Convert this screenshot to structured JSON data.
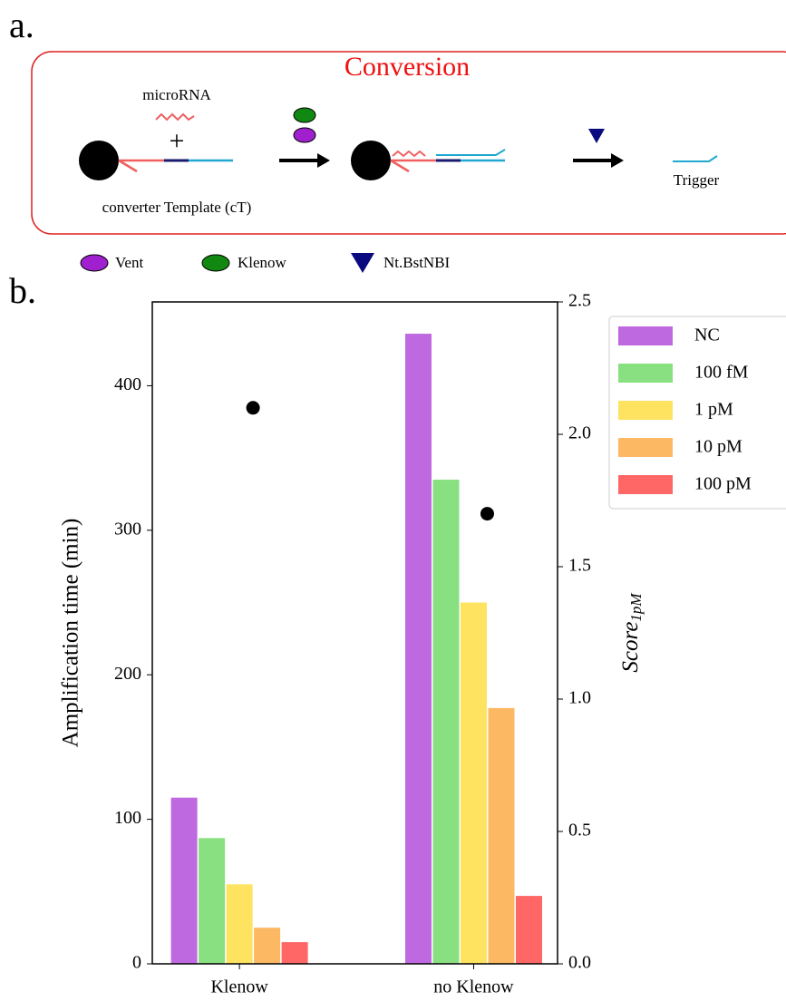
{
  "panel_a": {
    "label": "a.",
    "title": "Conversion",
    "microrna": "microRNA",
    "template": "converter Template (cT)",
    "trigger": "Trigger",
    "legend": [
      "Vent",
      "Klenow",
      "Nt.BstNBI"
    ]
  },
  "chart_data": {
    "type": "bar",
    "panel_label": "b.",
    "categories": [
      "Klenow",
      "no Klenow"
    ],
    "series": [
      {
        "name": "NC",
        "color": "#bf69e0",
        "values": [
          115,
          436
        ]
      },
      {
        "name": "100 fM",
        "color": "#88e080",
        "values": [
          87,
          335
        ]
      },
      {
        "name": "1 pM",
        "color": "#fde35f",
        "values": [
          55,
          250
        ]
      },
      {
        "name": "10 pM",
        "color": "#fdb863",
        "values": [
          25,
          177
        ]
      },
      {
        "name": "100 pM",
        "color": "#ff6666",
        "values": [
          15,
          47
        ]
      }
    ],
    "points": {
      "values": [
        2.1,
        1.7
      ],
      "color": "#000000",
      "axis": "y2"
    },
    "ylabel": "Amplification time (min)",
    "y2label": "Score",
    "y2label_sub": "1pM",
    "ylim": [
      0,
      458
    ],
    "yticks": [
      0,
      100,
      200,
      300,
      400
    ],
    "y2lim": [
      0,
      2.5
    ],
    "y2ticks": [
      {
        "value": 0,
        "label": "0.0"
      },
      0.5,
      {
        "value": 1,
        "label": "1.0"
      },
      1.5,
      {
        "value": 2,
        "label": "2.0"
      },
      2.5
    ],
    "legend": "outside right top"
  }
}
